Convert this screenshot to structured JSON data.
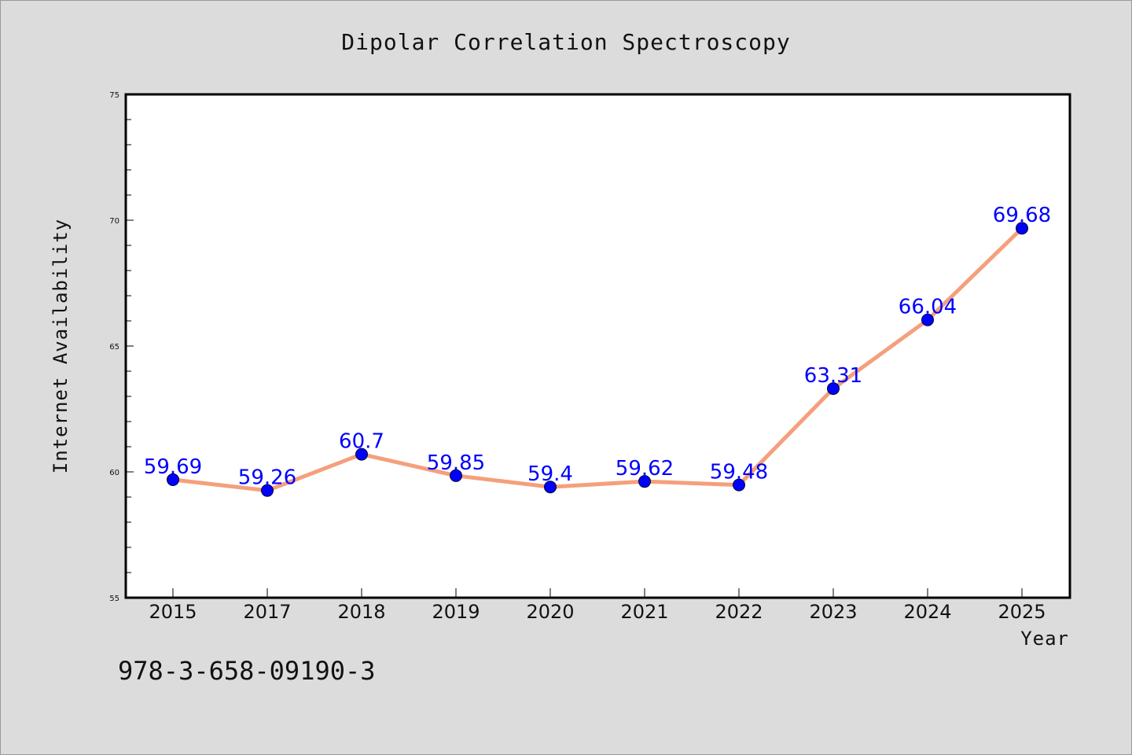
{
  "chart_data": {
    "type": "line",
    "title": "Dipolar Correlation Spectroscopy",
    "xlabel": "Year",
    "ylabel": "Internet Availability",
    "categories": [
      "2015",
      "2017",
      "2018",
      "2019",
      "2020",
      "2021",
      "2022",
      "2023",
      "2024",
      "2025"
    ],
    "series": [
      {
        "values": [
          59.69,
          59.26,
          60.7,
          59.85,
          59.4,
          59.62,
          59.48,
          63.31,
          66.04,
          69.68
        ],
        "labels": [
          "59.69",
          "59.26",
          "60.7",
          "59.85",
          "59.4",
          "59.62",
          "59.48",
          "63.31",
          "66.04",
          "69.68"
        ]
      }
    ],
    "ylim": [
      55,
      75
    ],
    "yticks": [
      "55",
      "60",
      "65",
      "70",
      "75"
    ],
    "grid": false,
    "colors": {
      "line": "#f4a07c",
      "marker": "#0000ff",
      "label": "#0000ff",
      "background": "#dcdcdc",
      "plot_bg": "#ffffff"
    }
  },
  "footer": {
    "isbn": "978-3-658-09190-3"
  }
}
